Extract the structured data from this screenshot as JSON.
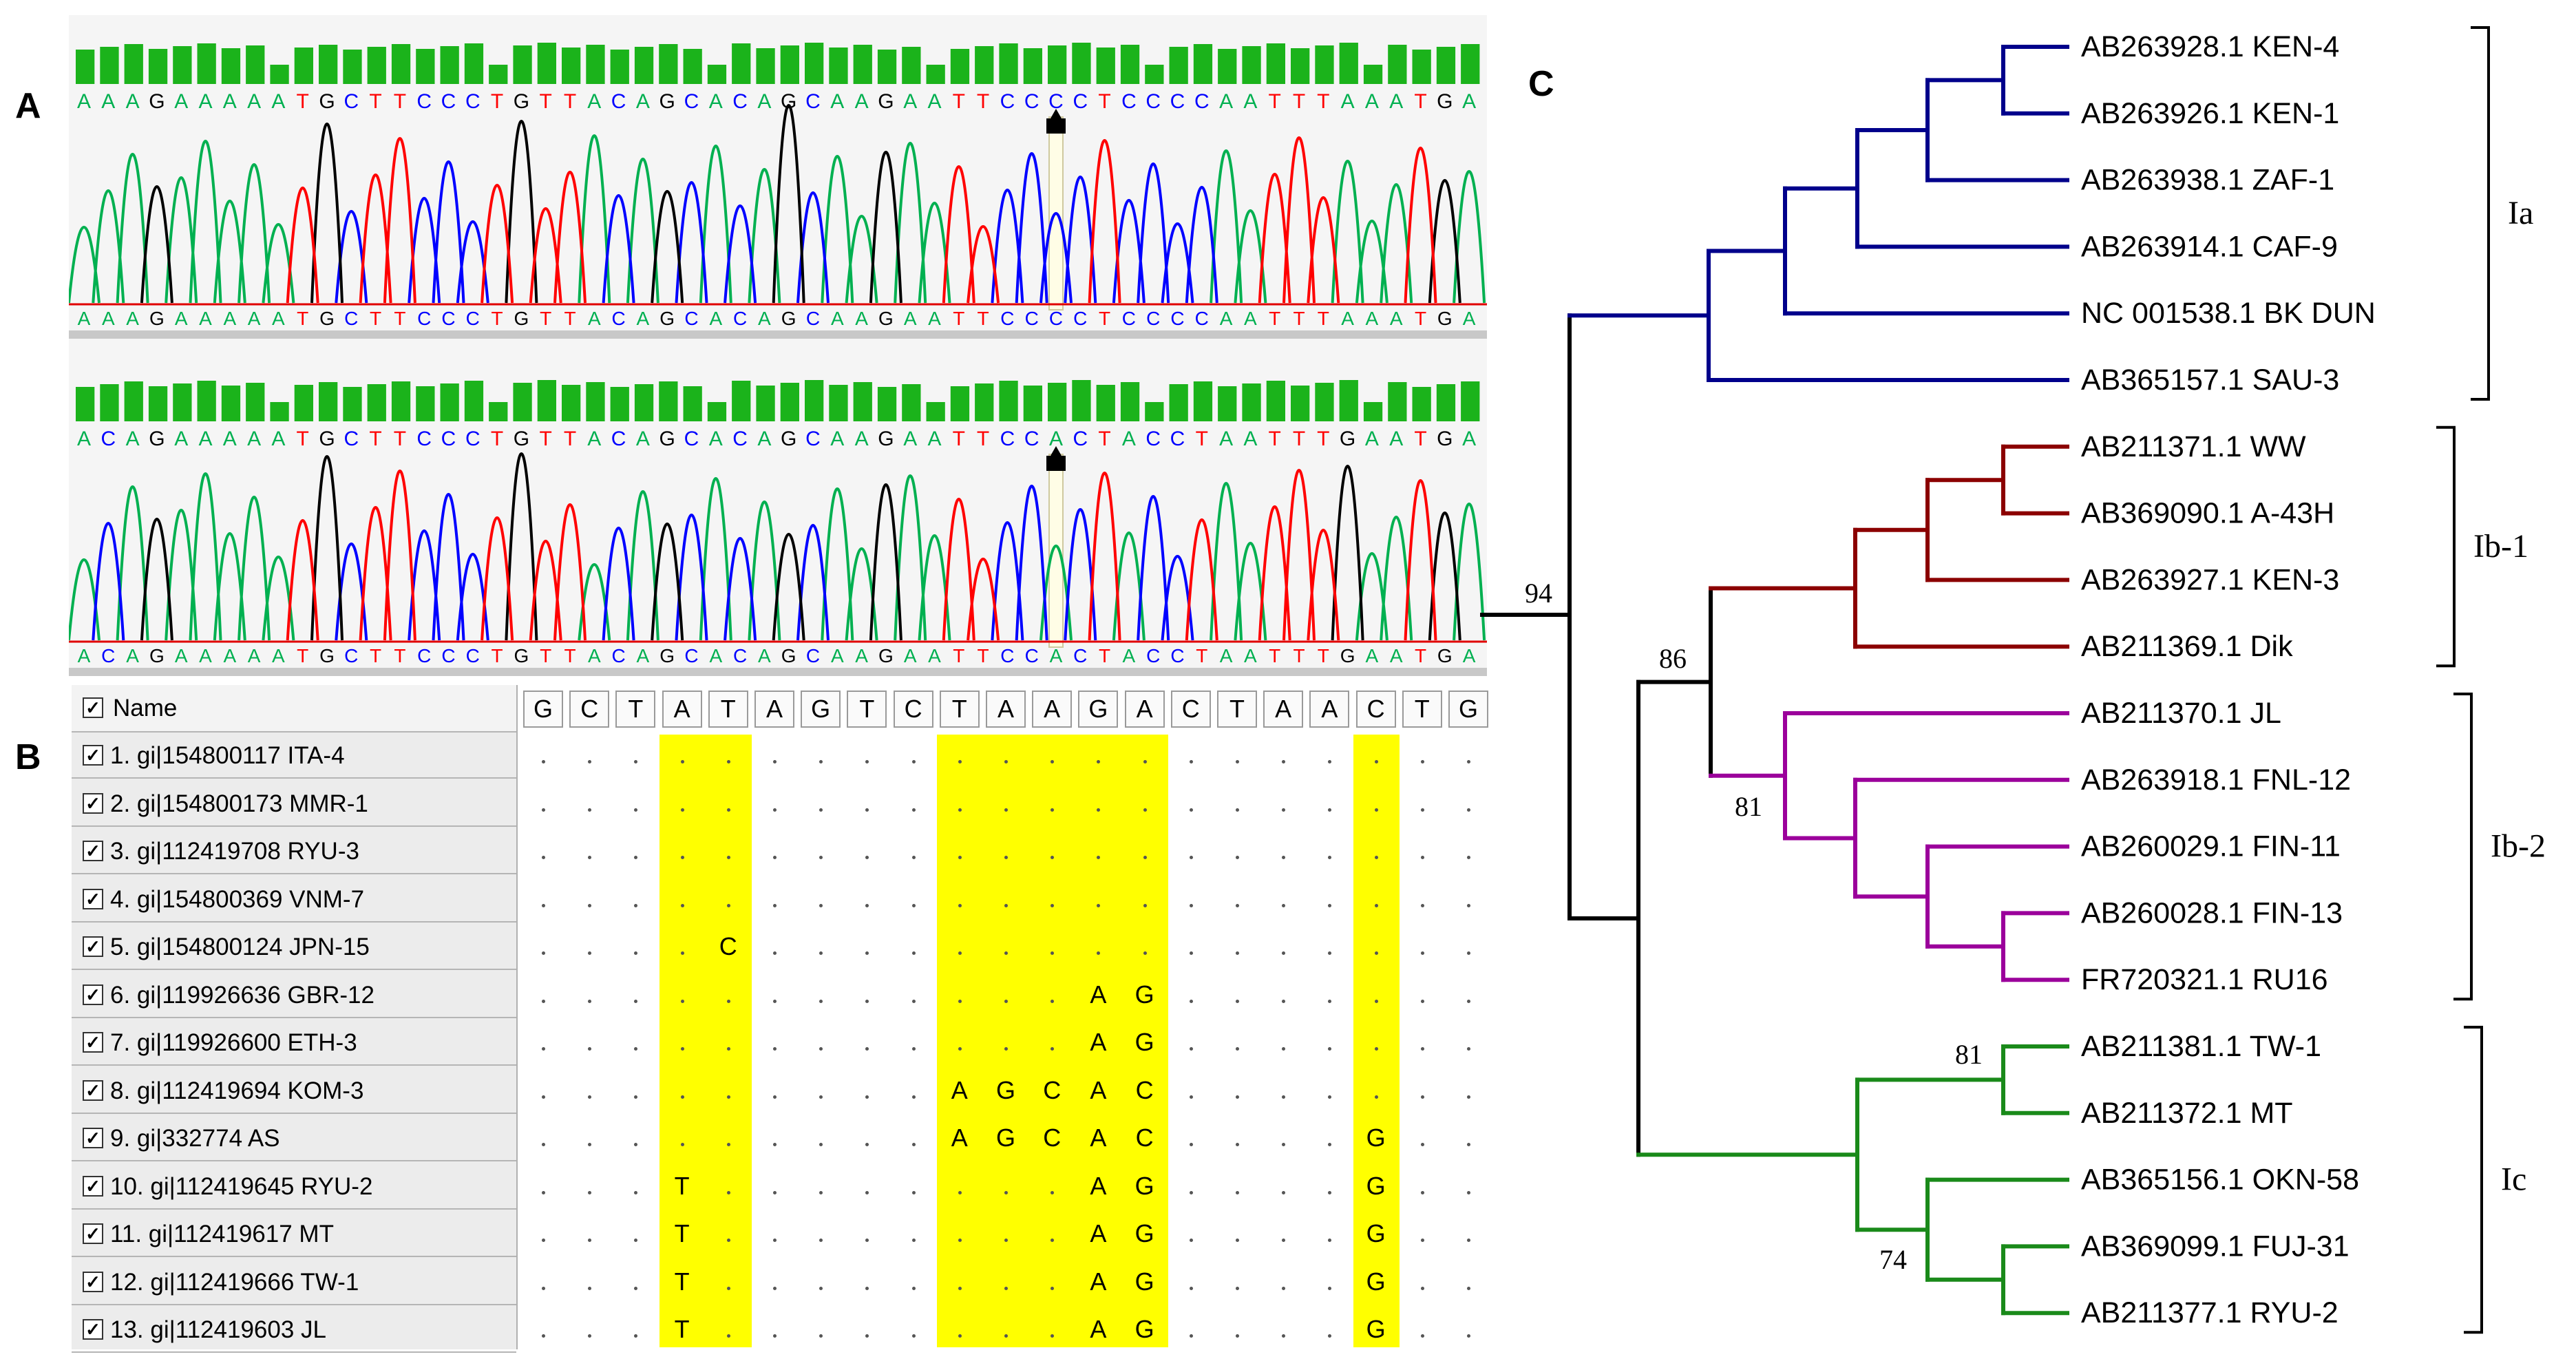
{
  "labels": {
    "a": "A",
    "b": "B",
    "c": "C"
  },
  "panel_a": {
    "traces": [
      {
        "sequence": "AAAGAAAAATGCTTCCCTGTTACAGCACAGCAAGAATTCCCCTCCCCAATTTAAATGA"
      },
      {
        "sequence": "ACAGAAAAATGCTTCCCTGTTACAGCACAGCAAGAATTCCACTACCTAATTTGAATGA"
      }
    ],
    "base_colors": {
      "A": "#00b050",
      "C": "#0000ff",
      "G": "#000000",
      "T": "#ff0000"
    }
  },
  "panel_b": {
    "header_label": "Name",
    "consensus": [
      "G",
      "C",
      "T",
      "A",
      "T",
      "A",
      "G",
      "T",
      "C",
      "T",
      "A",
      "A",
      "G",
      "A",
      "C",
      "T",
      "A",
      "A",
      "C",
      "T",
      "G"
    ],
    "rows": [
      {
        "label": "1. gi|154800117 ITA-4",
        "diffs": {}
      },
      {
        "label": "2. gi|154800173 MMR-1",
        "diffs": {}
      },
      {
        "label": "3. gi|112419708 RYU-3",
        "diffs": {}
      },
      {
        "label": "4. gi|154800369 VNM-7",
        "diffs": {}
      },
      {
        "label": "5. gi|154800124 JPN-15",
        "diffs": {
          "4": "C"
        }
      },
      {
        "label": "6. gi|119926636 GBR-12",
        "diffs": {
          "12": "A",
          "13": "G"
        }
      },
      {
        "label": "7. gi|119926600 ETH-3",
        "diffs": {
          "12": "A",
          "13": "G"
        }
      },
      {
        "label": "8. gi|112419694 KOM-3",
        "diffs": {
          "9": "A",
          "10": "G",
          "11": "C",
          "12": "A",
          "13": "C"
        }
      },
      {
        "label": "9. gi|332774 AS",
        "diffs": {
          "9": "A",
          "10": "G",
          "11": "C",
          "12": "A",
          "13": "C",
          "18": "G"
        }
      },
      {
        "label": "10. gi|112419645 RYU-2",
        "diffs": {
          "3": "T",
          "12": "A",
          "13": "G",
          "18": "G"
        }
      },
      {
        "label": "11. gi|112419617 MT",
        "diffs": {
          "3": "T",
          "12": "A",
          "13": "G",
          "18": "G"
        }
      },
      {
        "label": "12. gi|112419666 TW-1",
        "diffs": {
          "3": "T",
          "12": "A",
          "13": "G",
          "18": "G"
        }
      },
      {
        "label": "13. gi|112419603 JL",
        "diffs": {
          "3": "T",
          "12": "A",
          "13": "G",
          "18": "G"
        }
      }
    ],
    "highlight_columns": [
      3,
      4,
      9,
      10,
      11,
      12,
      13,
      18
    ]
  },
  "panel_c": {
    "leaves": [
      {
        "name": "AB263928.1 KEN-4",
        "color": "#00008b"
      },
      {
        "name": "AB263926.1 KEN-1",
        "color": "#00008b"
      },
      {
        "name": "AB263938.1 ZAF-1",
        "color": "#00008b"
      },
      {
        "name": "AB263914.1 CAF-9",
        "color": "#00008b"
      },
      {
        "name": "NC 001538.1 BK DUN",
        "color": "#00008b"
      },
      {
        "name": "AB365157.1 SAU-3",
        "color": "#00008b"
      },
      {
        "name": "AB211371.1 WW",
        "color": "#8b0000"
      },
      {
        "name": "AB369090.1 A-43H",
        "color": "#8b0000"
      },
      {
        "name": "AB263927.1 KEN-3",
        "color": "#8b0000"
      },
      {
        "name": "AB211369.1 Dik",
        "color": "#8b0000"
      },
      {
        "name": "AB211370.1 JL",
        "color": "#9b009b"
      },
      {
        "name": "AB263918.1 FNL-12",
        "color": "#9b009b"
      },
      {
        "name": "AB260029.1 FIN-11",
        "color": "#9b009b"
      },
      {
        "name": "AB260028.1 FIN-13",
        "color": "#9b009b"
      },
      {
        "name": "FR720321.1 RU16",
        "color": "#9b009b"
      },
      {
        "name": "AB211381.1 TW-1",
        "color": "#1a8a1a"
      },
      {
        "name": "AB211372.1 MT",
        "color": "#1a8a1a"
      },
      {
        "name": "AB365156.1 OKN-58",
        "color": "#1a8a1a"
      },
      {
        "name": "AB369099.1 FUJ-31",
        "color": "#1a8a1a"
      },
      {
        "name": "AB211377.1 RYU-2",
        "color": "#1a8a1a"
      }
    ],
    "bootstrap": [
      "94",
      "86",
      "81",
      "81",
      "74"
    ],
    "clades": [
      "Ia",
      "Ib-1",
      "Ib-2",
      "Ic"
    ]
  }
}
